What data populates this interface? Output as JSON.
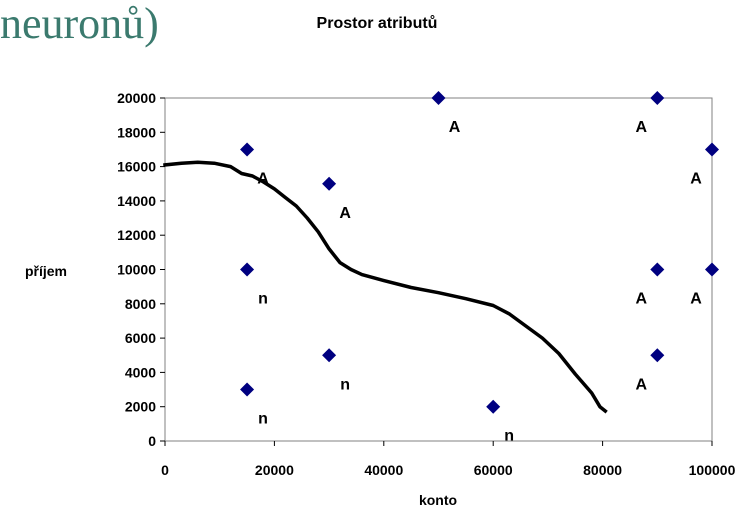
{
  "slide": {
    "title_fragment": "neuronů)"
  },
  "chart_data": {
    "type": "scatter",
    "title": "Prostor atributů",
    "xlabel": "konto",
    "ylabel": "příjem",
    "xlim": [
      0,
      100000
    ],
    "ylim": [
      0,
      20000
    ],
    "x_ticks": [
      "0",
      "20000",
      "40000",
      "60000",
      "80000",
      "100000"
    ],
    "y_ticks": [
      "0",
      "2000",
      "4000",
      "6000",
      "8000",
      "10000",
      "12000",
      "14000",
      "16000",
      "18000",
      "20000"
    ],
    "grid": false,
    "series": [
      {
        "type": "scatter",
        "marker": "diamond",
        "color": "#000080",
        "points": [
          {
            "x": 15000,
            "y": 17000,
            "label": "A"
          },
          {
            "x": 30000,
            "y": 15000,
            "label": "A"
          },
          {
            "x": 50000,
            "y": 20000,
            "label": "A"
          },
          {
            "x": 90000,
            "y": 20000,
            "label": "A"
          },
          {
            "x": 100000,
            "y": 17000,
            "label": "A"
          },
          {
            "x": 90000,
            "y": 10000,
            "label": "A"
          },
          {
            "x": 100000,
            "y": 10000,
            "label": "A"
          },
          {
            "x": 90000,
            "y": 5000,
            "label": "A"
          },
          {
            "x": 15000,
            "y": 10000,
            "label": "n"
          },
          {
            "x": 30000,
            "y": 5000,
            "label": "n"
          },
          {
            "x": 15000,
            "y": 3000,
            "label": "n"
          },
          {
            "x": 60000,
            "y": 2000,
            "label": "n"
          }
        ]
      },
      {
        "type": "line",
        "color": "#000000",
        "points": [
          [
            0,
            16100
          ],
          [
            3000,
            16200
          ],
          [
            6000,
            16250
          ],
          [
            9000,
            16200
          ],
          [
            12000,
            16000
          ],
          [
            14000,
            15600
          ],
          [
            16000,
            15450
          ],
          [
            18000,
            15100
          ],
          [
            20000,
            14700
          ],
          [
            22000,
            14200
          ],
          [
            24000,
            13700
          ],
          [
            26000,
            13000
          ],
          [
            28000,
            12200
          ],
          [
            30000,
            11200
          ],
          [
            32000,
            10400
          ],
          [
            34000,
            10000
          ],
          [
            36000,
            9700
          ],
          [
            40000,
            9350
          ],
          [
            45000,
            8950
          ],
          [
            50000,
            8650
          ],
          [
            55000,
            8300
          ],
          [
            60000,
            7900
          ],
          [
            63000,
            7400
          ],
          [
            66000,
            6700
          ],
          [
            69000,
            6000
          ],
          [
            72000,
            5100
          ],
          [
            75000,
            3900
          ],
          [
            78000,
            2800
          ],
          [
            79500,
            2000
          ],
          [
            80500,
            1750
          ]
        ]
      }
    ]
  }
}
